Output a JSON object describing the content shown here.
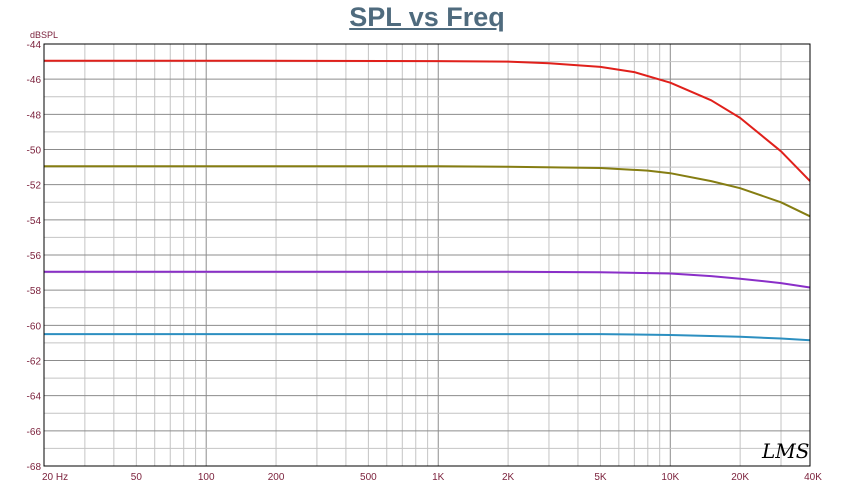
{
  "chart_data": {
    "type": "line",
    "title": "SPL vs Freq",
    "ylabel": "dBSPL",
    "xlabel": "",
    "x_scale": "log",
    "xlim": [
      20,
      40000
    ],
    "ylim": [
      -68,
      -44
    ],
    "grid": true,
    "x_ticks": [
      {
        "value": 20,
        "label": "20  Hz"
      },
      {
        "value": 50,
        "label": "50"
      },
      {
        "value": 100,
        "label": "100"
      },
      {
        "value": 200,
        "label": "200"
      },
      {
        "value": 500,
        "label": "500"
      },
      {
        "value": 1000,
        "label": "1K"
      },
      {
        "value": 2000,
        "label": "2K"
      },
      {
        "value": 5000,
        "label": "5K"
      },
      {
        "value": 10000,
        "label": "10K"
      },
      {
        "value": 20000,
        "label": "20K"
      },
      {
        "value": 40000,
        "label": "40K"
      }
    ],
    "y_ticks": [
      -44,
      -46,
      -48,
      -50,
      -52,
      -54,
      -56,
      -58,
      -60,
      -62,
      -64,
      -66,
      -68
    ],
    "series": [
      {
        "color": "#e0201b",
        "x": [
          20,
          100,
          1000,
          2000,
          3000,
          5000,
          7000,
          10000,
          15000,
          20000,
          30000,
          40000
        ],
        "y": [
          -44.95,
          -44.95,
          -44.97,
          -45.0,
          -45.1,
          -45.3,
          -45.6,
          -46.2,
          -47.2,
          -48.2,
          -50.1,
          -51.8
        ]
      },
      {
        "color": "#857d12",
        "x": [
          20,
          100,
          1000,
          2000,
          5000,
          8000,
          10000,
          15000,
          20000,
          30000,
          40000
        ],
        "y": [
          -50.95,
          -50.95,
          -50.95,
          -50.98,
          -51.05,
          -51.2,
          -51.35,
          -51.8,
          -52.2,
          -53.0,
          -53.8
        ]
      },
      {
        "color": "#8a2fc8",
        "x": [
          20,
          100,
          1000,
          2000,
          5000,
          10000,
          15000,
          20000,
          30000,
          40000
        ],
        "y": [
          -56.95,
          -56.95,
          -56.95,
          -56.95,
          -56.98,
          -57.05,
          -57.2,
          -57.35,
          -57.6,
          -57.85
        ]
      },
      {
        "color": "#2c8fc0",
        "x": [
          20,
          100,
          1000,
          2000,
          5000,
          10000,
          20000,
          30000,
          40000
        ],
        "y": [
          -60.5,
          -60.5,
          -60.5,
          -60.5,
          -60.5,
          -60.55,
          -60.65,
          -60.75,
          -60.85
        ]
      }
    ]
  },
  "logo_text": "LMS"
}
